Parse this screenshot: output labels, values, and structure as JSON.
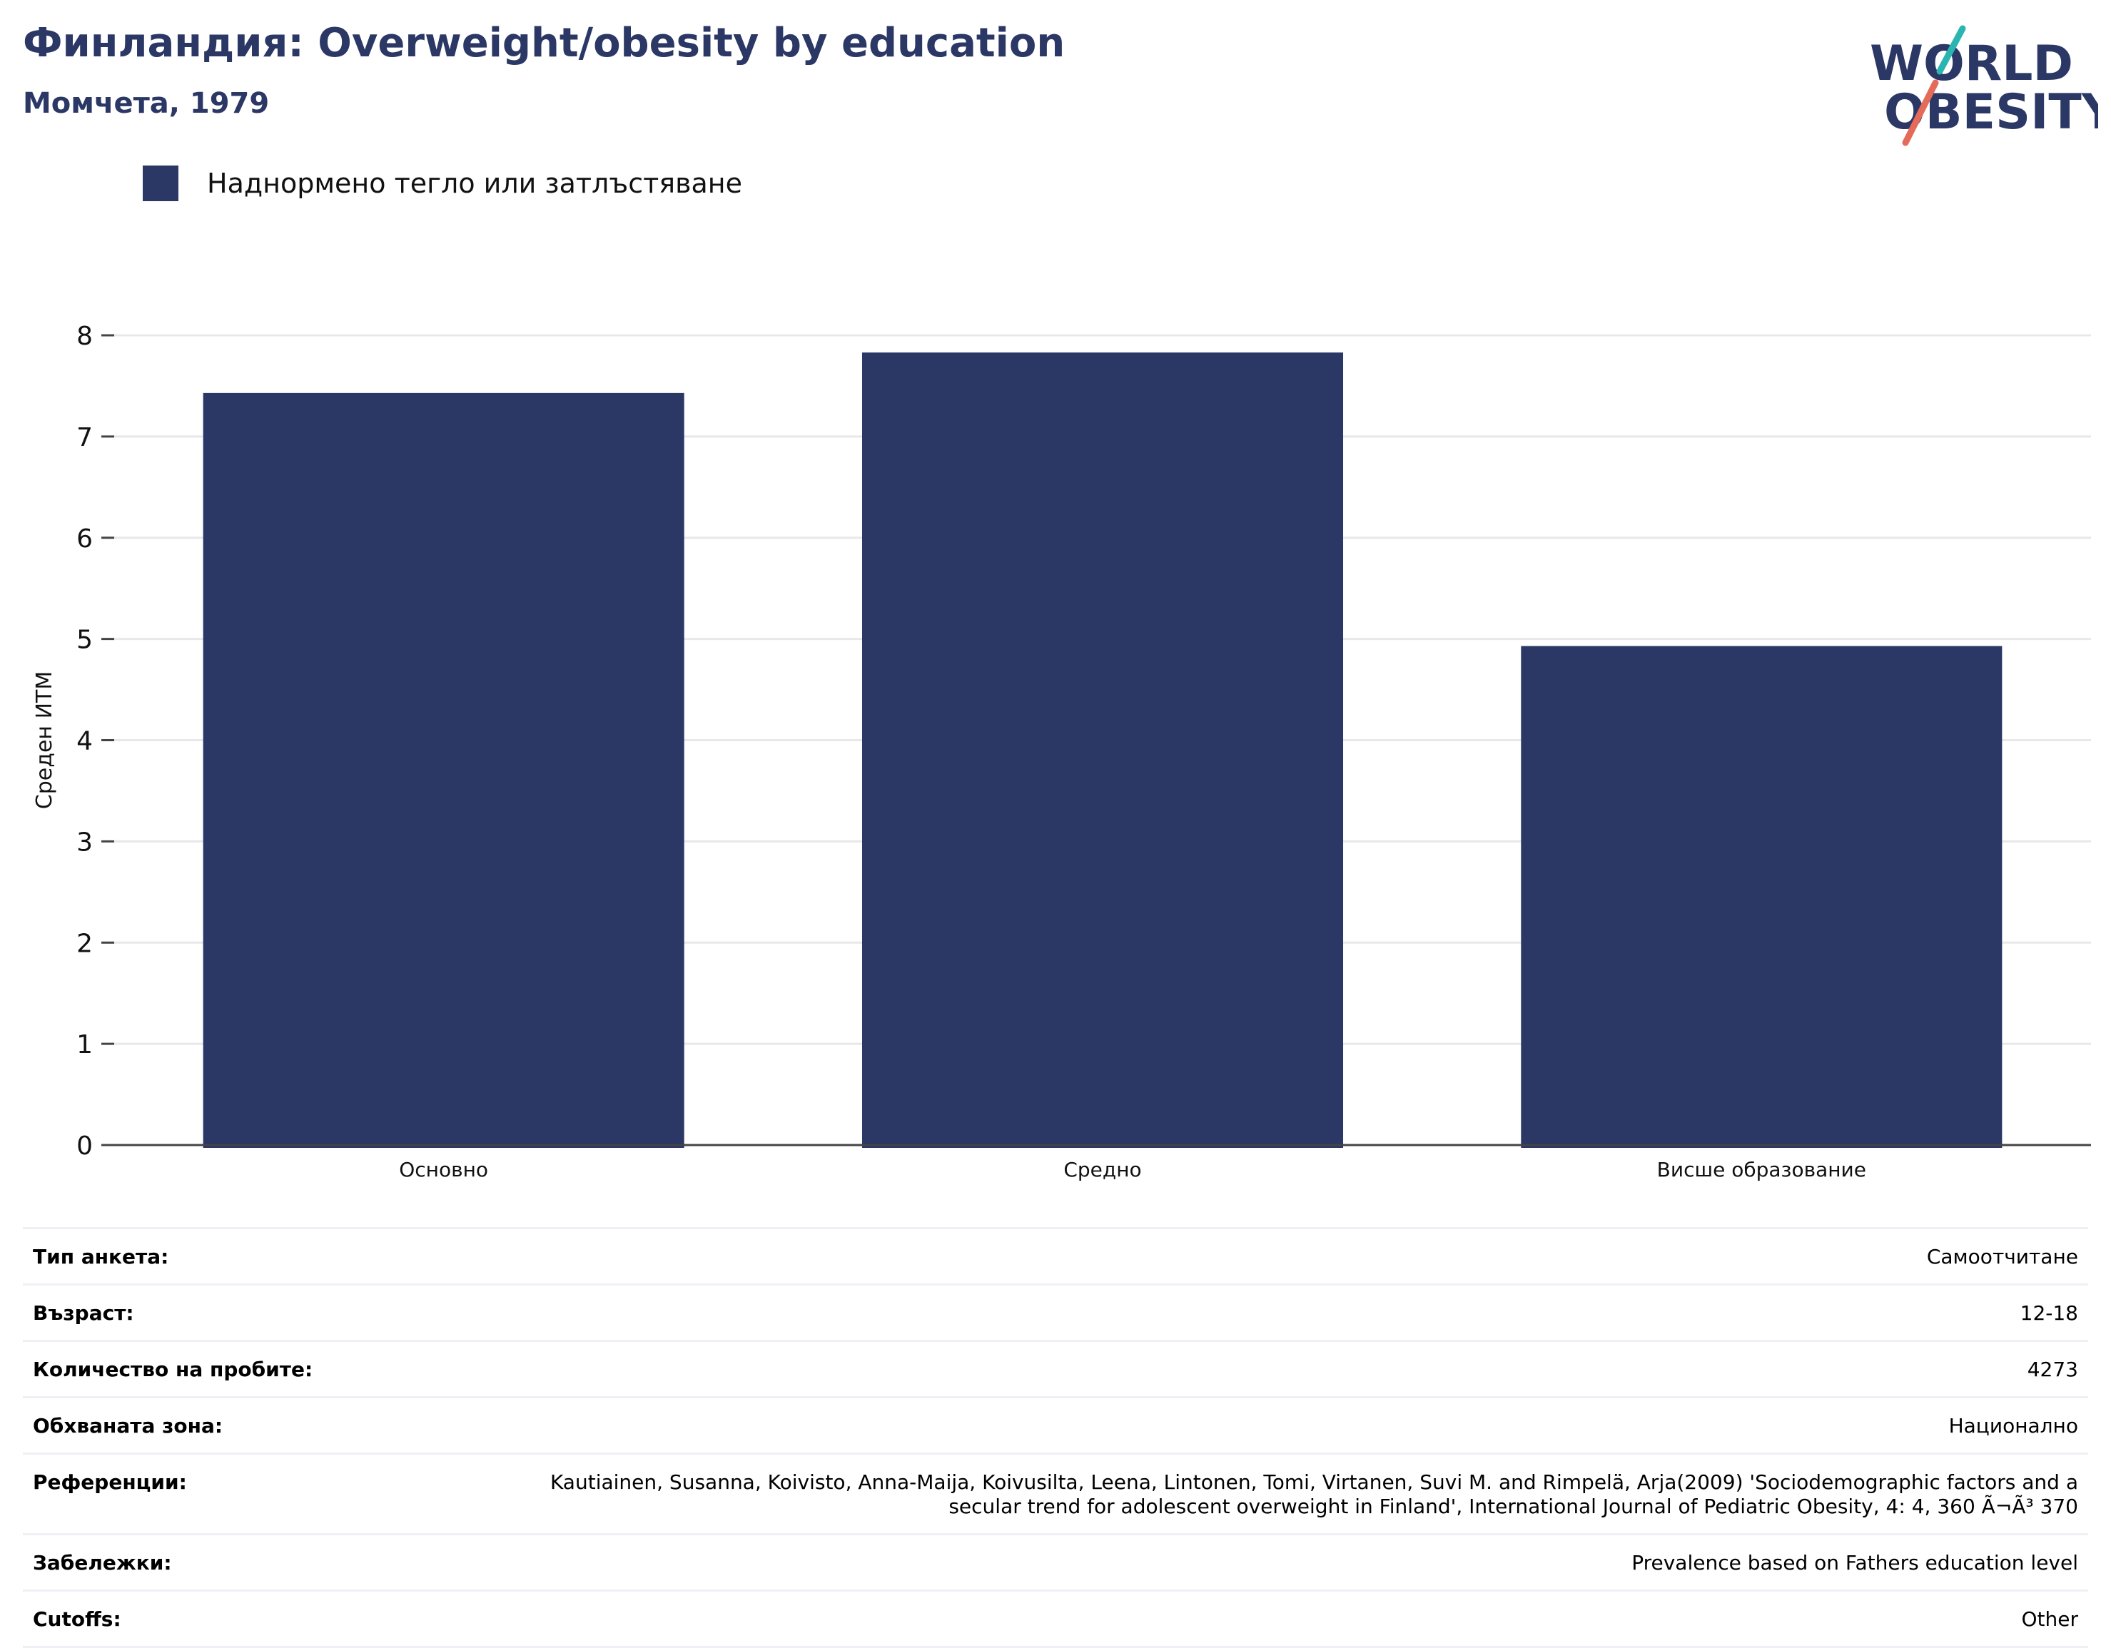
{
  "header": {
    "title": "Финландия: Overweight/obesity by education",
    "subtitle": "Момчета, 1979"
  },
  "logo": {
    "line1": "WORLD",
    "line2": "OBESITY"
  },
  "chart_data": {
    "type": "bar",
    "categories": [
      "Основно",
      "Средно",
      "Висше образование"
    ],
    "series": [
      {
        "name": "Наднормено тегло или затлъстяване",
        "values": [
          7.43,
          7.83,
          4.93
        ],
        "color": "#2b3765"
      }
    ],
    "ylabel": "Среден ИТМ",
    "xlabel": "",
    "ylim": [
      0,
      8
    ],
    "yticks": [
      0,
      1,
      2,
      3,
      4,
      5,
      6,
      7,
      8
    ],
    "grid": true,
    "legend": "top-left"
  },
  "meta": [
    {
      "key": "Тип анкета:",
      "value": "Самоотчитане"
    },
    {
      "key": "Възраст:",
      "value": "12-18"
    },
    {
      "key": "Количество на пробите:",
      "value": "4273"
    },
    {
      "key": "Обхваната зона:",
      "value": "Национално"
    },
    {
      "key": "Референции:",
      "value": "Kautiainen, Susanna, Koivisto, Anna-Maija, Koivusilta, Leena, Lintonen, Tomi, Virtanen, Suvi M. and Rimpelä, Arja(2009) 'Sociodemographic factors and a secular trend for adolescent overweight in Finland', International Journal of Pediatric Obesity, 4: 4, 360 Ã¬Ã³ 370"
    },
    {
      "key": "Забележки:",
      "value": "Prevalence based on Fathers education level"
    },
    {
      "key": "Cutoffs:",
      "value": "Other"
    }
  ]
}
